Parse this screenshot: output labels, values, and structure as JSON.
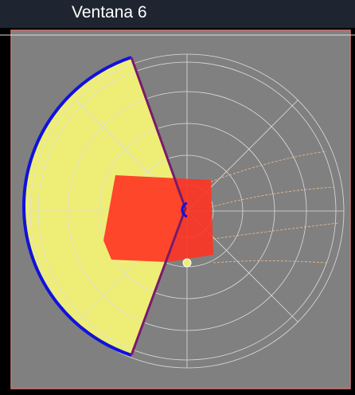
{
  "header": {
    "title": "Ventana 6"
  }
}
